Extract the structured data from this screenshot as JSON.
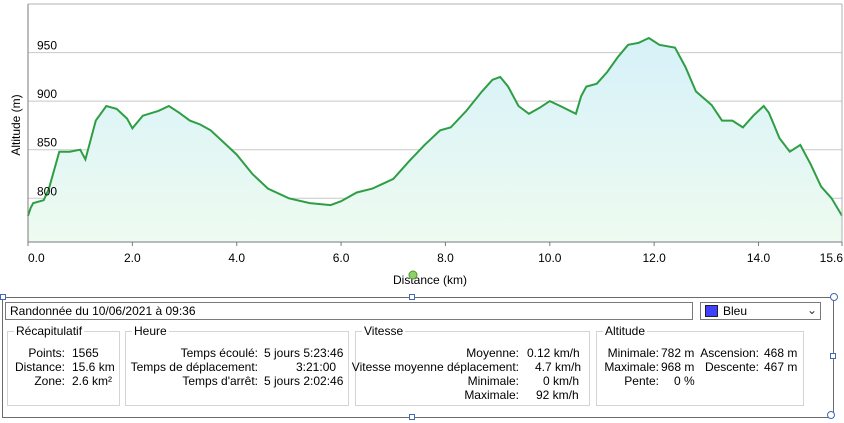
{
  "colors": {
    "line": "#2e9e44",
    "fill_top": "#d6f1f9",
    "fill_bottom": "#eefbf0",
    "grid": "#c8c8c8",
    "accent": "#4040ff"
  },
  "chart_data": {
    "type": "area",
    "xlabel": "Distance  (km)",
    "ylabel": "Altitude (m)",
    "xlim": [
      0,
      15.6
    ],
    "ylim": [
      755,
      1000
    ],
    "xticks": [
      "0.0",
      "2.0",
      "4.0",
      "6.0",
      "8.0",
      "10.0",
      "12.0",
      "14.0",
      "15.6"
    ],
    "xtick_values": [
      0,
      2,
      4,
      6,
      8,
      10,
      12,
      14,
      15.6
    ],
    "yticks": [
      "800",
      "850",
      "900",
      "950"
    ],
    "ytick_values": [
      800,
      850,
      900,
      950
    ],
    "grid": true,
    "series": [
      {
        "x": [
          0,
          0.05,
          0.1,
          0.3,
          0.4,
          0.6,
          0.8,
          1.0,
          1.1,
          1.15,
          1.3,
          1.5,
          1.7,
          1.9,
          2.0,
          2.2,
          2.5,
          2.7,
          2.9,
          3.1,
          3.3,
          3.5,
          3.7,
          4.0,
          4.3,
          4.6,
          5.0,
          5.4,
          5.8,
          6.0,
          6.3,
          6.6,
          7.0,
          7.3,
          7.6,
          7.9,
          8.1,
          8.4,
          8.7,
          8.9,
          9.05,
          9.2,
          9.4,
          9.6,
          9.8,
          10.0,
          10.2,
          10.5,
          10.6,
          10.7,
          10.9,
          11.1,
          11.3,
          11.5,
          11.7,
          11.9,
          12.1,
          12.4,
          12.6,
          12.8,
          13.1,
          13.3,
          13.5,
          13.7,
          13.9,
          14.1,
          14.2,
          14.3,
          14.4,
          14.6,
          14.8,
          15.0,
          15.2,
          15.4,
          15.6
        ],
        "y": [
          782,
          790,
          795,
          798,
          810,
          848,
          848,
          850,
          840,
          850,
          880,
          895,
          892,
          882,
          872,
          885,
          890,
          895,
          888,
          880,
          876,
          870,
          860,
          845,
          825,
          810,
          800,
          795,
          793,
          797,
          806,
          810,
          820,
          838,
          855,
          870,
          873,
          890,
          910,
          922,
          925,
          915,
          895,
          887,
          893,
          900,
          895,
          887,
          905,
          915,
          918,
          930,
          945,
          958,
          960,
          965,
          958,
          955,
          935,
          910,
          896,
          880,
          880,
          873,
          885,
          895,
          888,
          875,
          862,
          848,
          855,
          835,
          812,
          800,
          782
        ]
      }
    ]
  },
  "panel": {
    "title_value": "Randonnée du 10/06/2021 à 09:36",
    "color_value": "Bleu",
    "recap": {
      "title": "Récapitulatif",
      "rows": [
        {
          "label": "Points:",
          "value": "1565"
        },
        {
          "label": "Distance:",
          "value": "15.6 km"
        },
        {
          "label": "Zone:",
          "value": "2.6 km²"
        }
      ]
    },
    "heure": {
      "title": "Heure",
      "rows": [
        {
          "label": "Temps écoulé:",
          "value": "5 jours 5:23:46"
        },
        {
          "label": "Temps de déplacement:",
          "value": "3:21:00"
        },
        {
          "label": "Temps d'arrêt:",
          "value": "5 jours 2:02:46"
        }
      ]
    },
    "vitesse": {
      "title": "Vitesse",
      "rows": [
        {
          "label": "Moyenne:",
          "value": "0.12 km/h"
        },
        {
          "label": "Vitesse moyenne déplacement:",
          "value": "4.7 km/h"
        },
        {
          "label": "Minimale:",
          "value": "0 km/h"
        },
        {
          "label": "Maximale:",
          "value": "92 km/h"
        }
      ]
    },
    "altitude": {
      "title": "Altitude",
      "rows": [
        {
          "label": "Minimale:",
          "value": "782 m"
        },
        {
          "label": "Maximale:",
          "value": "968 m"
        },
        {
          "label": "Pente:",
          "value": "0 %"
        }
      ],
      "rows2": [
        {
          "label": "Ascension:",
          "value": "468 m"
        },
        {
          "label": "Descente:",
          "value": "467 m"
        }
      ]
    }
  }
}
